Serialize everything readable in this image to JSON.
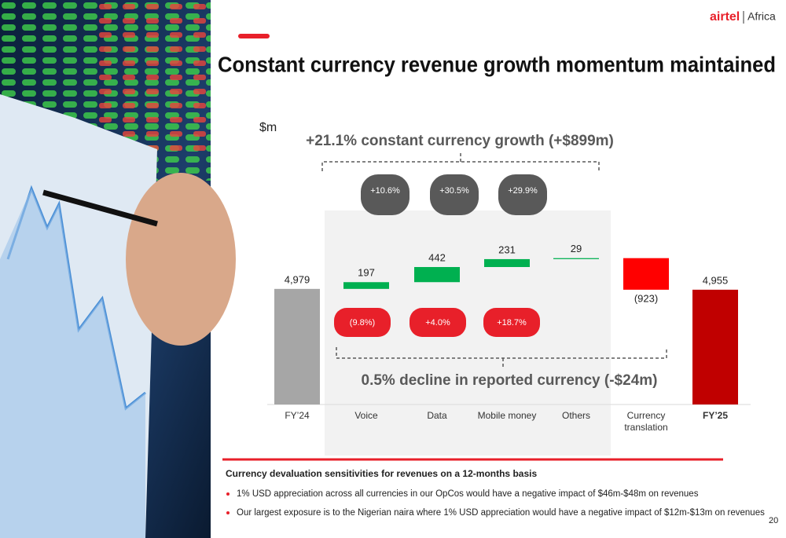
{
  "header": {
    "logo": "airtel",
    "region": "Africa",
    "title": "Constant currency revenue growth momentum maintained"
  },
  "chart_data": {
    "type": "waterfall",
    "unit_label": "$m",
    "categories": [
      "FY’24",
      "Voice",
      "Data",
      "Mobile money",
      "Others",
      "Currency translation",
      "FY’25"
    ],
    "values": [
      4979,
      197,
      442,
      231,
      29,
      -923,
      4955
    ],
    "value_labels": [
      "4,979",
      "197",
      "442",
      "231",
      "29",
      "(923)",
      "4,955"
    ],
    "colors": [
      "#a6a6a6",
      "#00b050",
      "#00b050",
      "#00b050",
      "#00b050",
      "#ff0000",
      "#c00000"
    ],
    "ylim": [
      1600,
      6100
    ],
    "constant_currency_growth": {
      "text": "+21.1% constant currency growth (+$899m)",
      "values": [
        10.6,
        30.5,
        29.9
      ],
      "value_labels": [
        "+10.6%",
        "+30.5%",
        "+29.9%"
      ],
      "color": "#595959"
    },
    "reported_growth": {
      "text": "0.5% decline in reported currency (-$24m)",
      "values": [
        -9.8,
        4.0,
        18.7
      ],
      "value_labels": [
        "(9.8%)",
        "+4.0%",
        "+18.7%"
      ],
      "color": "#e8202a"
    }
  },
  "footer": {
    "heading": "Currency devaluation sensitivities for revenues on a 12-months basis",
    "bullets": [
      "1% USD appreciation across all currencies in our OpCos would have a negative impact of $46m-$48m on revenues",
      "Our largest exposure is to the Nigerian naira where 1% USD appreciation would have a negative impact of $12m-$13m on revenues"
    ],
    "page_number": "20"
  }
}
